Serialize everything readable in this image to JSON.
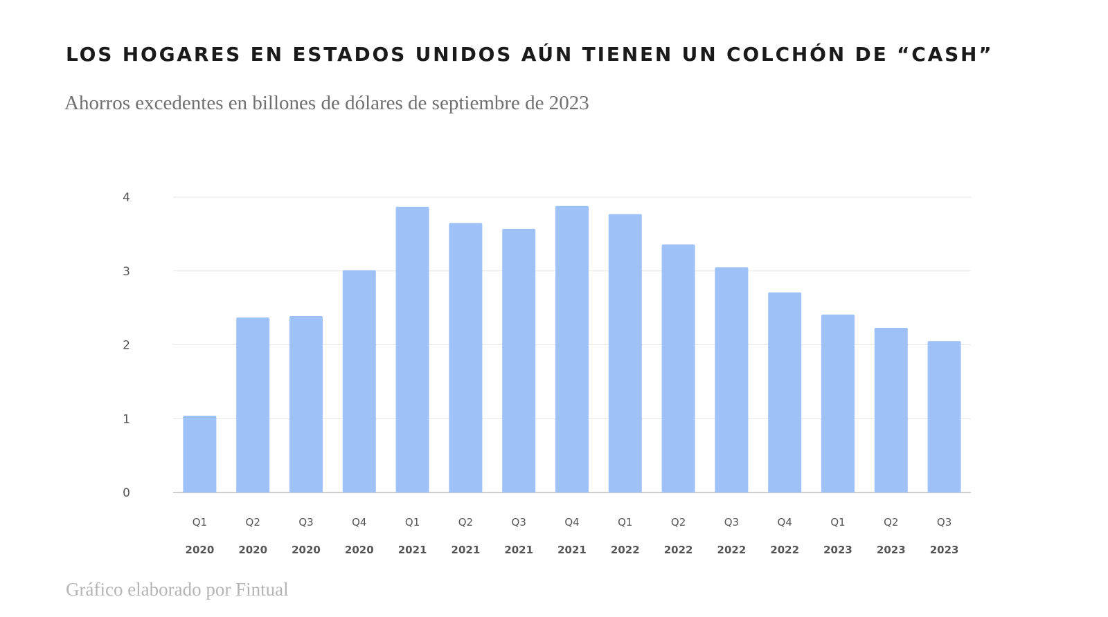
{
  "chart_data": {
    "type": "bar",
    "title": "LOS HOGARES EN ESTADOS UNIDOS AÚN TIENEN UN COLCHÓN DE “CASH”",
    "subtitle": "Ahorros excedentes en billones de dólares de septiembre de 2023",
    "source": "Gráfico elaborado por Fintual",
    "xlabel": "",
    "ylabel": "",
    "ylim": [
      0,
      4
    ],
    "yticks": [
      "0",
      "1",
      "2",
      "3",
      "4"
    ],
    "grid": true,
    "legend": "none",
    "bar_color": "#9ec2f7",
    "categories": [
      {
        "quarter": "Q1",
        "year": "2020"
      },
      {
        "quarter": "Q2",
        "year": "2020"
      },
      {
        "quarter": "Q3",
        "year": "2020"
      },
      {
        "quarter": "Q4",
        "year": "2020"
      },
      {
        "quarter": "Q1",
        "year": "2021"
      },
      {
        "quarter": "Q2",
        "year": "2021"
      },
      {
        "quarter": "Q3",
        "year": "2021"
      },
      {
        "quarter": "Q4",
        "year": "2021"
      },
      {
        "quarter": "Q1",
        "year": "2022"
      },
      {
        "quarter": "Q2",
        "year": "2022"
      },
      {
        "quarter": "Q3",
        "year": "2022"
      },
      {
        "quarter": "Q4",
        "year": "2022"
      },
      {
        "quarter": "Q1",
        "year": "2023"
      },
      {
        "quarter": "Q2",
        "year": "2023"
      },
      {
        "quarter": "Q3",
        "year": "2023"
      }
    ],
    "values": [
      1.04,
      2.37,
      2.39,
      3.01,
      3.87,
      3.65,
      3.57,
      3.88,
      3.77,
      3.36,
      3.05,
      2.71,
      2.41,
      2.23,
      2.05
    ]
  }
}
